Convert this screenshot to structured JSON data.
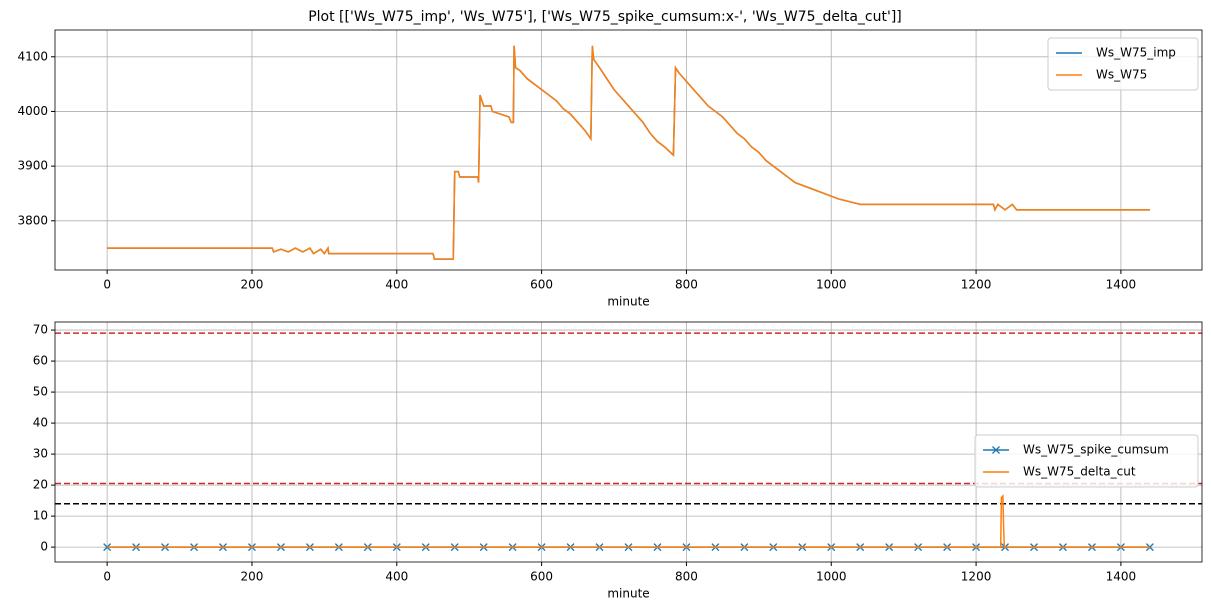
{
  "title": "Plot [['Ws_W75_imp', 'Ws_W75'], ['Ws_W75_spike_cumsum:x-', 'Ws_W75_delta_cut']]",
  "chart_data": [
    {
      "type": "line",
      "xlabel": "minute",
      "grid": true,
      "legend": "upper right",
      "xlim": [
        -72,
        1512
      ],
      "ylim": [
        3710,
        4149
      ],
      "xticks": [
        0,
        200,
        400,
        600,
        800,
        1000,
        1200,
        1400
      ],
      "yticks": [
        3800,
        3900,
        4000,
        4100
      ],
      "x": [
        0,
        228,
        230,
        240,
        250,
        260,
        270,
        280,
        285,
        295,
        300,
        305,
        306,
        450,
        452,
        478,
        480,
        485,
        487,
        512,
        513,
        515,
        520,
        530,
        532,
        555,
        558,
        561,
        562,
        564,
        570,
        580,
        590,
        600,
        610,
        620,
        630,
        640,
        650,
        660,
        668,
        670,
        672,
        680,
        690,
        700,
        710,
        720,
        730,
        740,
        750,
        760,
        770,
        782,
        785,
        790,
        800,
        810,
        820,
        830,
        840,
        850,
        860,
        870,
        880,
        890,
        900,
        910,
        920,
        930,
        940,
        950,
        970,
        990,
        1010,
        1040,
        1224,
        1226,
        1230,
        1240,
        1250,
        1256,
        1440
      ],
      "series": [
        {
          "name": "Ws_W75_imp",
          "color": "#1f77b4",
          "values": [
            3750,
            3750,
            3743,
            3748,
            3743,
            3750,
            3743,
            3750,
            3740,
            3748,
            3740,
            3750,
            3740,
            3740,
            3730,
            3730,
            3890,
            3890,
            3880,
            3880,
            3870,
            4030,
            4010,
            4010,
            4000,
            3990,
            3980,
            3980,
            4120,
            4080,
            4075,
            4060,
            4050,
            4040,
            4030,
            4020,
            4005,
            3995,
            3980,
            3965,
            3950,
            4120,
            4095,
            4080,
            4060,
            4040,
            4025,
            4010,
            3995,
            3980,
            3960,
            3945,
            3935,
            3920,
            4080,
            4070,
            4055,
            4040,
            4025,
            4010,
            4000,
            3990,
            3975,
            3960,
            3950,
            3935,
            3925,
            3910,
            3900,
            3890,
            3880,
            3870,
            3860,
            3850,
            3840,
            3830,
            3830,
            3820,
            3830,
            3820,
            3830,
            3820,
            3820
          ]
        },
        {
          "name": "Ws_W75",
          "color": "#ff7f0e",
          "values": [
            3750,
            3750,
            3743,
            3748,
            3743,
            3750,
            3743,
            3750,
            3740,
            3748,
            3740,
            3750,
            3740,
            3740,
            3730,
            3730,
            3890,
            3890,
            3880,
            3880,
            3870,
            4030,
            4010,
            4010,
            4000,
            3990,
            3980,
            3980,
            4120,
            4080,
            4075,
            4060,
            4050,
            4040,
            4030,
            4020,
            4005,
            3995,
            3980,
            3965,
            3950,
            4120,
            4095,
            4080,
            4060,
            4040,
            4025,
            4010,
            3995,
            3980,
            3960,
            3945,
            3935,
            3920,
            4080,
            4070,
            4055,
            4040,
            4025,
            4010,
            4000,
            3990,
            3975,
            3960,
            3950,
            3935,
            3925,
            3910,
            3900,
            3890,
            3880,
            3870,
            3860,
            3850,
            3840,
            3830,
            3830,
            3820,
            3830,
            3820,
            3830,
            3820,
            3820
          ]
        }
      ]
    },
    {
      "type": "line",
      "xlabel": "minute",
      "grid": true,
      "legend": "center right",
      "xlim": [
        -72,
        1512
      ],
      "ylim": [
        -4.8,
        72.6
      ],
      "xticks": [
        0,
        200,
        400,
        600,
        800,
        1000,
        1200,
        1400
      ],
      "yticks": [
        0,
        10,
        20,
        30,
        40,
        50,
        60,
        70
      ],
      "hlines": [
        {
          "value": 69,
          "color": "#d62728"
        },
        {
          "value": 20.5,
          "color": "#d62728"
        },
        {
          "value": 14,
          "color": "#000000"
        }
      ],
      "series": [
        {
          "name": "Ws_W75_spike_cumsum",
          "color": "#1f77b4",
          "marker": "x",
          "x": [
            0,
            40,
            80,
            120,
            160,
            200,
            240,
            280,
            320,
            360,
            400,
            440,
            480,
            520,
            560,
            600,
            640,
            680,
            720,
            760,
            800,
            840,
            880,
            920,
            960,
            1000,
            1040,
            1080,
            1120,
            1160,
            1200,
            1240,
            1280,
            1320,
            1360,
            1400,
            1440
          ],
          "values": [
            0,
            0,
            0,
            0,
            0,
            0,
            0,
            0,
            0,
            0,
            0,
            0,
            0,
            0,
            0,
            0,
            0,
            0,
            0,
            0,
            0,
            0,
            0,
            0,
            0,
            0,
            0,
            0,
            0,
            0,
            0,
            0,
            0,
            0,
            0,
            0,
            0
          ]
        },
        {
          "name": "Ws_W75_delta_cut",
          "color": "#ff7f0e",
          "x": [
            0,
            1234,
            1235,
            1237,
            1238,
            1239,
            1440
          ],
          "values": [
            0,
            0,
            16,
            16.5,
            7,
            0,
            0
          ]
        }
      ]
    }
  ]
}
